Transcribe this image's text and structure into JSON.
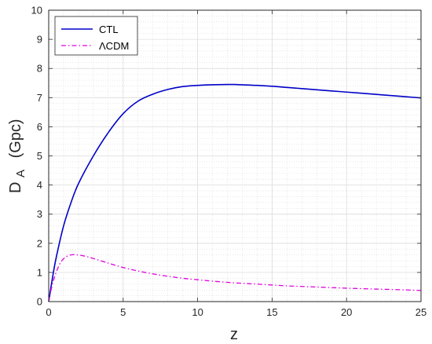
{
  "chart_data": {
    "type": "line",
    "xlabel": "z",
    "ylabel_main": "D",
    "ylabel_sub": "A",
    "ylabel_unit": "(Gpc)",
    "xlim": [
      0,
      25
    ],
    "ylim": [
      0,
      10
    ],
    "xticks": [
      0,
      5,
      10,
      15,
      20,
      25
    ],
    "yticks": [
      0,
      1,
      2,
      3,
      4,
      5,
      6,
      7,
      8,
      9,
      10
    ],
    "grid": true,
    "minor_grid": true,
    "legend_position": "top-left",
    "series": [
      {
        "name": "CTL",
        "color": "#0000c8",
        "style": "solid",
        "x": [
          0,
          0.25,
          0.5,
          1,
          1.5,
          2,
          3,
          4,
          5,
          6,
          7,
          8,
          9,
          10,
          11,
          12,
          12.5,
          13,
          14,
          15,
          16,
          17,
          18,
          19,
          20,
          21,
          22,
          23,
          24,
          25
        ],
        "y": [
          0,
          0.8,
          1.5,
          2.6,
          3.4,
          4.05,
          5.0,
          5.8,
          6.45,
          6.88,
          7.12,
          7.28,
          7.38,
          7.42,
          7.44,
          7.45,
          7.45,
          7.44,
          7.42,
          7.39,
          7.35,
          7.31,
          7.27,
          7.23,
          7.19,
          7.15,
          7.11,
          7.07,
          7.03,
          6.99
        ]
      },
      {
        "name": "ΛCDM",
        "color": "#e000e0",
        "style": "dashdot",
        "x": [
          0,
          0.25,
          0.5,
          0.75,
          1,
          1.25,
          1.6,
          2,
          2.5,
          3,
          4,
          5,
          6,
          7,
          8,
          9,
          10,
          12,
          14,
          16,
          18,
          20,
          22,
          24,
          25
        ],
        "y": [
          0,
          0.6,
          1.0,
          1.3,
          1.47,
          1.56,
          1.61,
          1.6,
          1.55,
          1.48,
          1.32,
          1.17,
          1.05,
          0.95,
          0.87,
          0.8,
          0.75,
          0.66,
          0.6,
          0.54,
          0.5,
          0.46,
          0.43,
          0.4,
          0.38
        ]
      }
    ]
  }
}
